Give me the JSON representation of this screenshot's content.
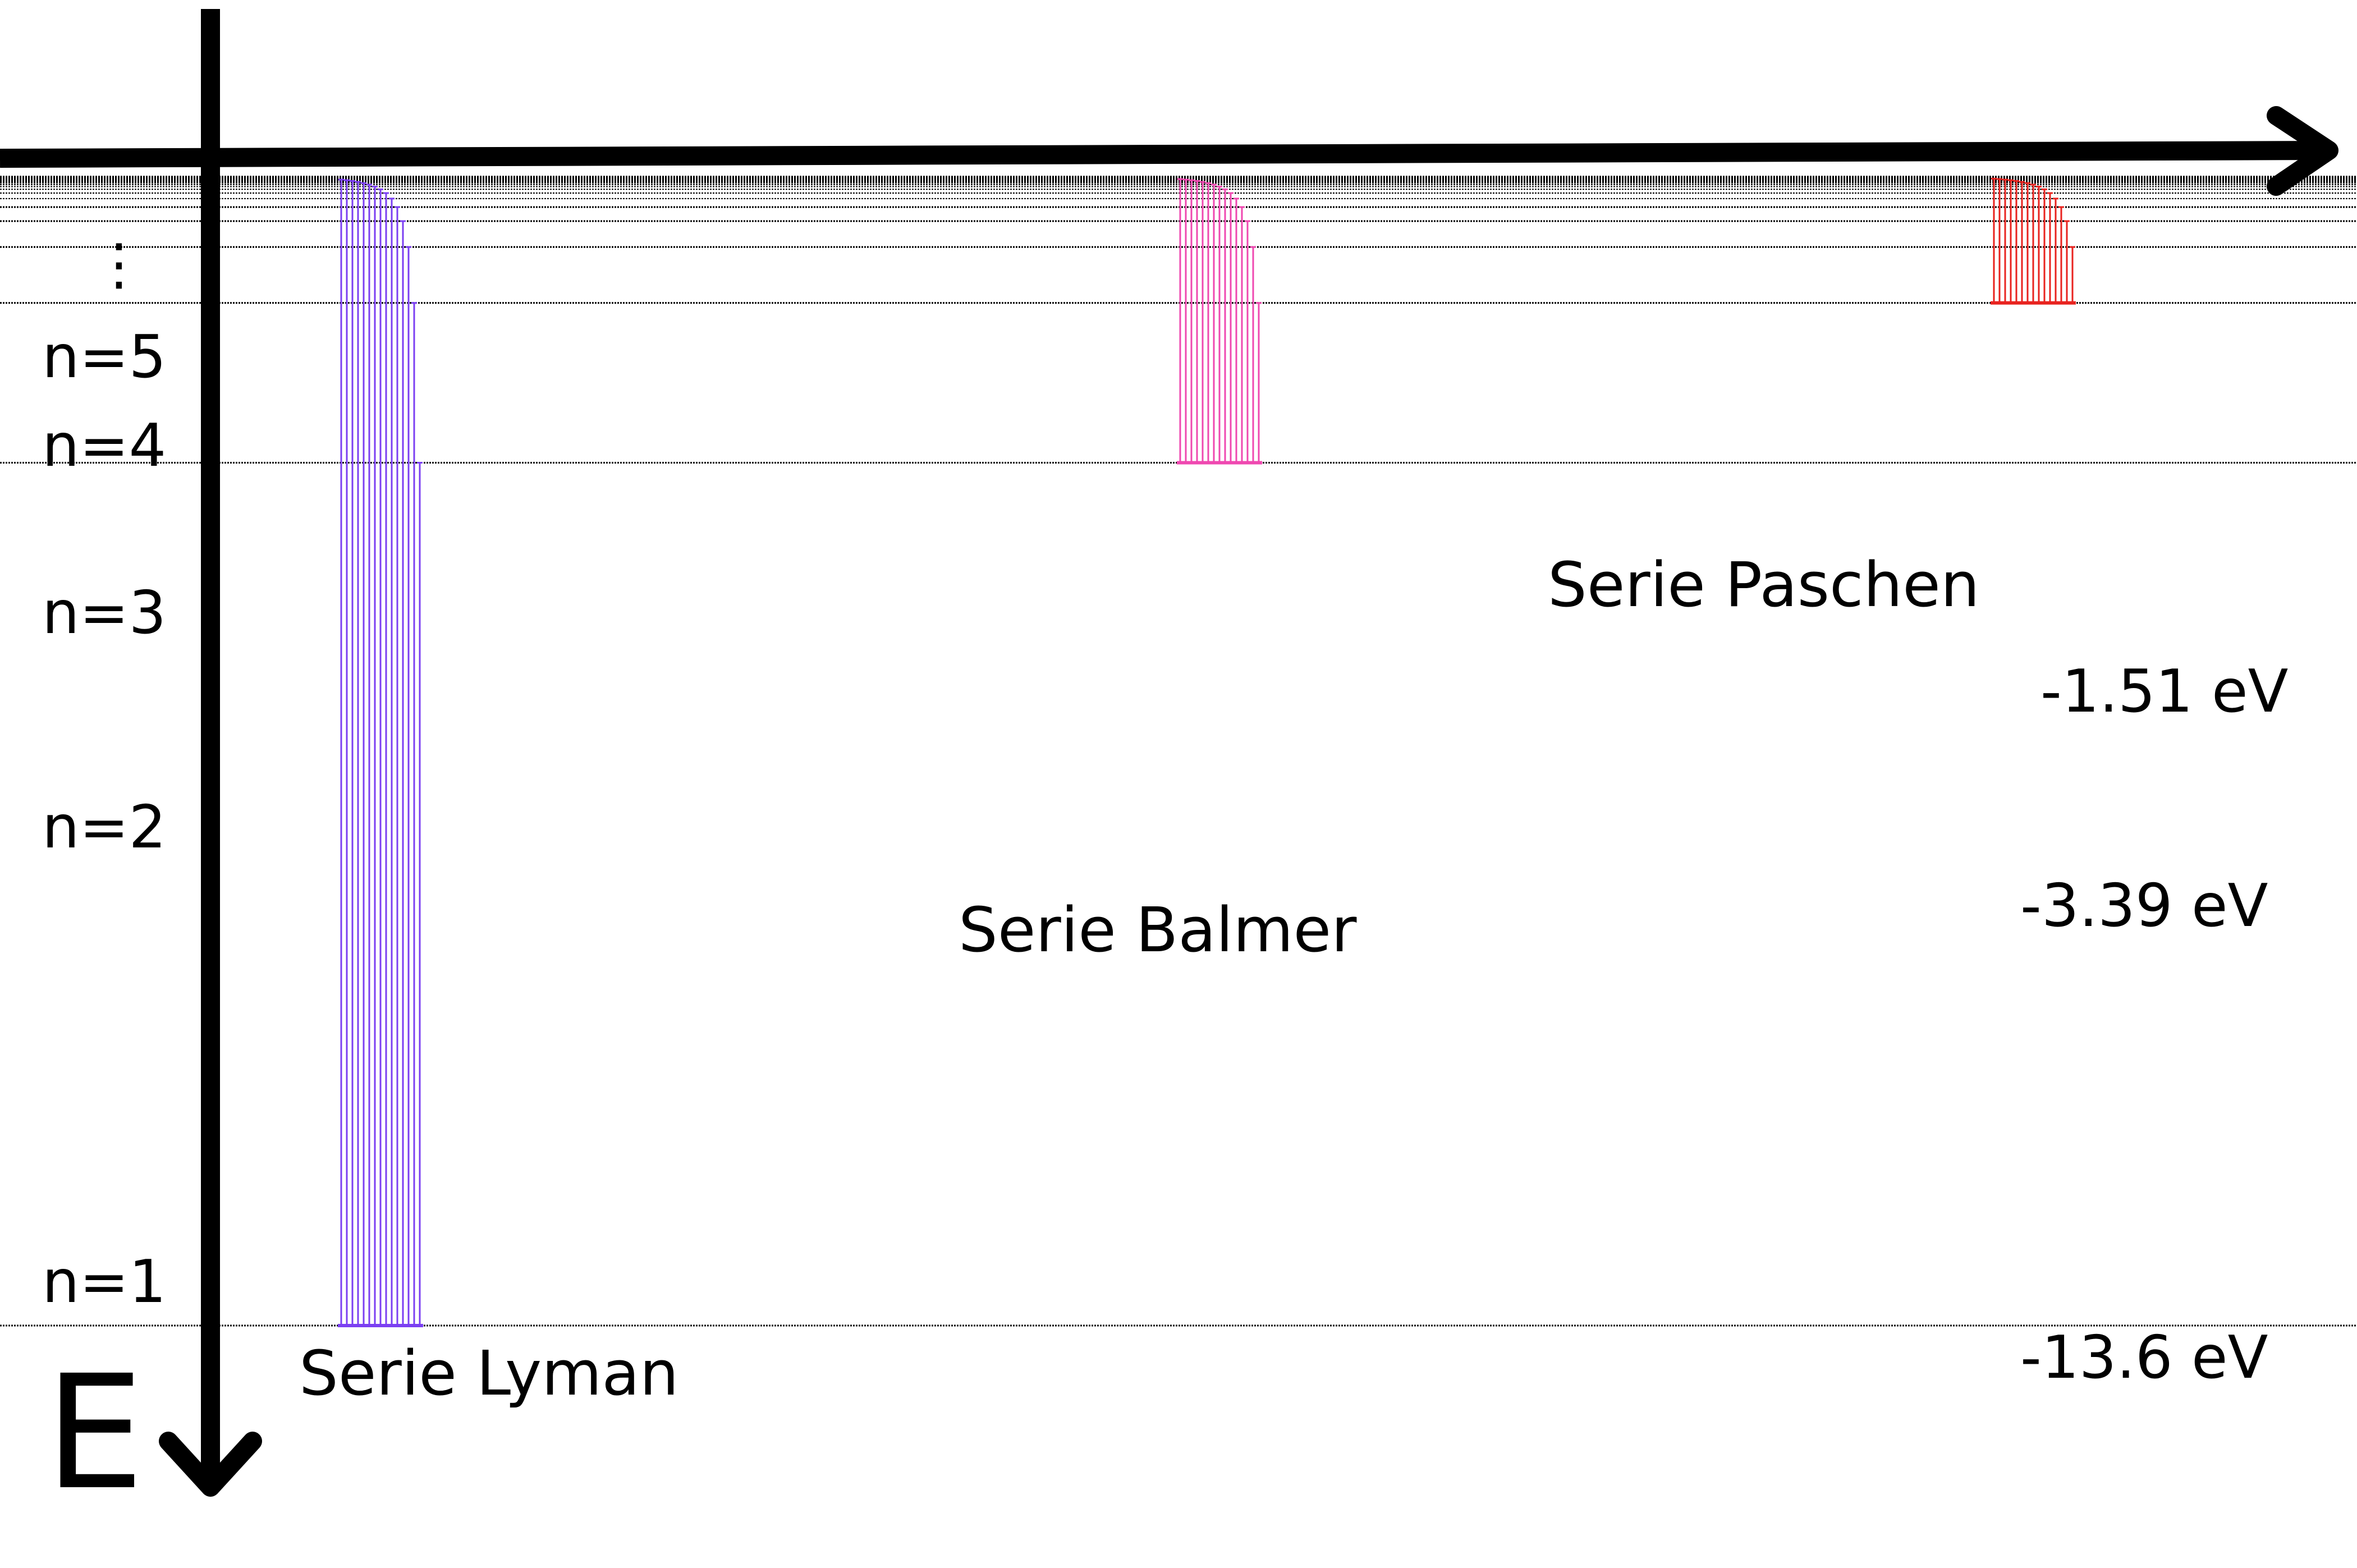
{
  "levels": [
    {
      "n": 1,
      "label": "n=1",
      "energy_label": "-13.6 eV"
    },
    {
      "n": 2,
      "label": "n=2",
      "energy_label": "-3.39 eV"
    },
    {
      "n": 3,
      "label": "n=3",
      "energy_label": "-1.51 eV"
    },
    {
      "n": 4,
      "label": "n=4"
    },
    {
      "n": 5,
      "label": "n=5"
    }
  ],
  "energy_axis_label": "E",
  "ellipsis": "⋮",
  "series": [
    {
      "name": "Serie Lyman",
      "final_n": 1,
      "color": "#7b3ff2"
    },
    {
      "name": "Serie Balmer",
      "final_n": 2,
      "color": "#ef48b0"
    },
    {
      "name": "Serie Paschen",
      "final_n": 3,
      "color": "#e8231f"
    }
  ],
  "colors": {
    "axis": "#000000",
    "level_lines": "#000000"
  }
}
